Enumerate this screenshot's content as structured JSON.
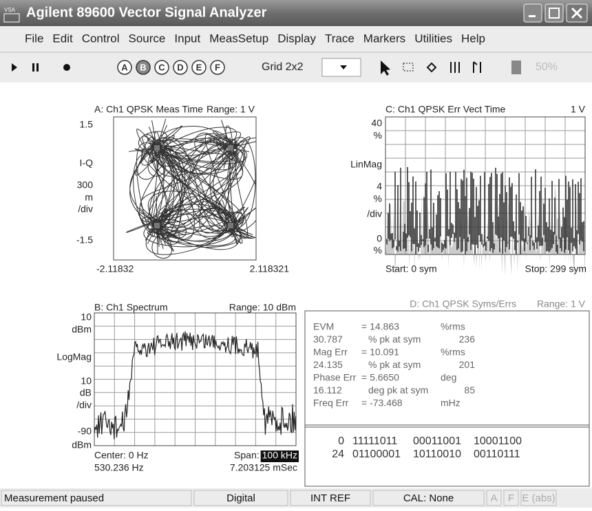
{
  "window": {
    "title": "Agilent 89600 Vector Signal Analyzer",
    "icon": "VSA"
  },
  "menu": [
    "File",
    "Edit",
    "Control",
    "Source",
    "Input",
    "MeasSetup",
    "Display",
    "Trace",
    "Markers",
    "Utilities",
    "Help"
  ],
  "toolbar": {
    "traces": [
      "A",
      "B",
      "C",
      "D",
      "E",
      "F"
    ],
    "layout": "Grid 2x2",
    "zoom": "50%"
  },
  "panel_a": {
    "title": "A: Ch1 QPSK Meas Time",
    "range": "Range: 1 V",
    "y_labels": [
      "1.5",
      "I-Q",
      "300",
      "m",
      "/div",
      "-1.5"
    ],
    "x_start": "-2.11832",
    "x_stop": "2.118321"
  },
  "panel_c": {
    "title": "C: Ch1 QPSK Err Vect Time",
    "range": "1 V",
    "y_labels": [
      "40",
      "%",
      "LinMag",
      "4",
      "%",
      "/div",
      "0",
      "%"
    ],
    "start": "Start: 0  sym",
    "stop": "Stop: 299  sym"
  },
  "panel_b": {
    "title": "B: Ch1 Spectrum",
    "range": "Range: 10 dBm",
    "y_labels": [
      "10",
      "dBm",
      "LogMag",
      "10",
      "dB",
      "/div",
      "-90",
      "dBm"
    ],
    "center": "Center: 0  Hz",
    "span_label": "Span:",
    "span": "100 kHz",
    "rbw": "530.236  Hz",
    "time": "7.203125 mSec"
  },
  "panel_d": {
    "title": "D: Ch1 QPSK Syms/Errs",
    "range": "Range: 1 V",
    "rows": [
      [
        "EVM",
        "= 14.863",
        "%rms"
      ],
      [
        "30.787",
        "% pk  at  sym",
        "236"
      ],
      [
        "Mag Err",
        "= 10.091",
        "%rms"
      ],
      [
        "24.135",
        "% pk  at  sym",
        "201"
      ],
      [
        "Phase  Err",
        "= 5.6650",
        "deg"
      ],
      [
        "16.112",
        "deg pk  at  sym",
        "85"
      ],
      [
        "Freq  Err",
        "= -73.468",
        "mHz"
      ]
    ],
    "symbols": [
      [
        "0",
        "11111011",
        "00011001",
        "10001100"
      ],
      [
        "24",
        "01100001",
        "10110010",
        "00110111"
      ]
    ]
  },
  "status": [
    "Measurement paused",
    "Digital",
    "INT REF",
    "CAL: None",
    "A",
    "F",
    "E (abs)"
  ]
}
